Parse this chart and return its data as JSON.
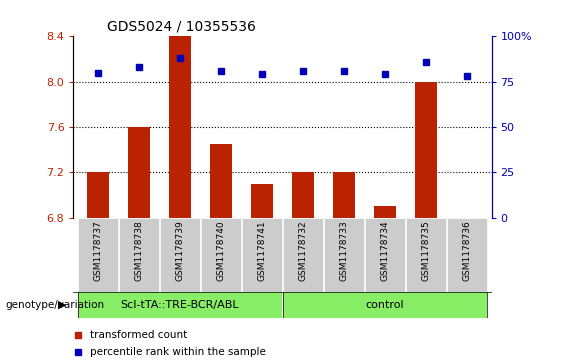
{
  "title": "GDS5024 / 10355536",
  "samples": [
    "GSM1178737",
    "GSM1178738",
    "GSM1178739",
    "GSM1178740",
    "GSM1178741",
    "GSM1178732",
    "GSM1178733",
    "GSM1178734",
    "GSM1178735",
    "GSM1178736"
  ],
  "red_values": [
    7.2,
    7.6,
    8.4,
    7.45,
    7.1,
    7.2,
    7.2,
    6.9,
    8.0,
    6.8
  ],
  "blue_values": [
    80,
    83,
    88,
    81,
    79,
    81,
    81,
    79,
    86,
    78
  ],
  "ylim_left": [
    6.8,
    8.4
  ],
  "yticks_left": [
    6.8,
    7.2,
    7.6,
    8.0,
    8.4
  ],
  "yticks_right": [
    0,
    25,
    50,
    75,
    100
  ],
  "grid_lines": [
    7.2,
    7.6,
    8.0
  ],
  "group1_label": "ScI-tTA::TRE-BCR/ABL",
  "group2_label": "control",
  "group1_count": 5,
  "group2_count": 5,
  "row_label": "genotype/variation",
  "legend_red": "transformed count",
  "legend_blue": "percentile rank within the sample",
  "bar_color": "#BB2200",
  "dot_color": "#0000BB",
  "group1_bg": "#88EE66",
  "group2_bg": "#88EE66",
  "ticklabel_bg": "#CCCCCC",
  "bar_width": 0.55
}
